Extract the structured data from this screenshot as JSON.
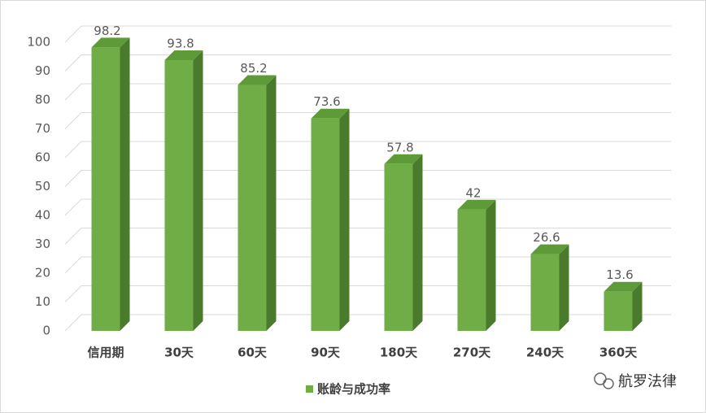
{
  "chart_data": {
    "type": "bar3d",
    "categories": [
      "信用期",
      "30天",
      "60天",
      "90天",
      "180天",
      "270天",
      "240天",
      "360天"
    ],
    "series": [
      {
        "name": "账龄与成功率",
        "color": "#70ad47",
        "values": [
          98.2,
          93.8,
          85.2,
          73.6,
          57.8,
          42,
          26.6,
          13.6
        ]
      }
    ],
    "ylim": [
      0,
      100
    ],
    "yticks": [
      0,
      10,
      20,
      30,
      40,
      50,
      60,
      70,
      80,
      90,
      100
    ],
    "grid": true,
    "legend": "bottom"
  },
  "watermark": "航罗法律"
}
